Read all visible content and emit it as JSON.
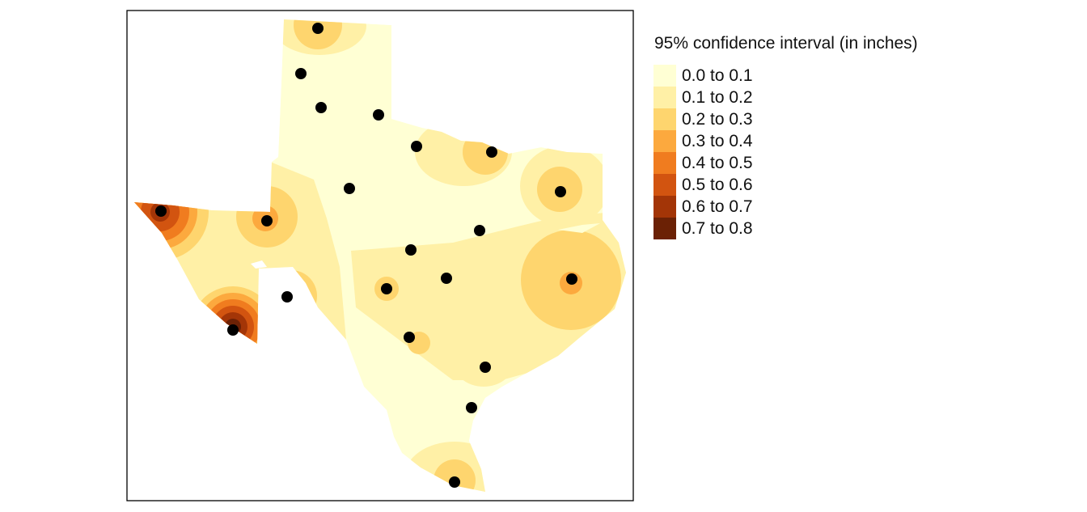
{
  "legend": {
    "title": "95% confidence interval (in inches)",
    "items": [
      {
        "label": "0.0 to 0.1",
        "color": "#ffffd4"
      },
      {
        "label": "0.1 to 0.2",
        "color": "#fff0a6"
      },
      {
        "label": "0.2 to 0.3",
        "color": "#fed56e"
      },
      {
        "label": "0.3 to 0.4",
        "color": "#fca93e"
      },
      {
        "label": "0.4 to 0.5",
        "color": "#f07c1f"
      },
      {
        "label": "0.5 to 0.6",
        "color": "#d25410"
      },
      {
        "label": "0.6 to 0.7",
        "color": "#a33507"
      },
      {
        "label": "0.7 to 0.8",
        "color": "#6b2105"
      }
    ]
  },
  "map": {
    "region": "Texas",
    "point_color": "#000000",
    "frame_color": "#000000"
  }
}
